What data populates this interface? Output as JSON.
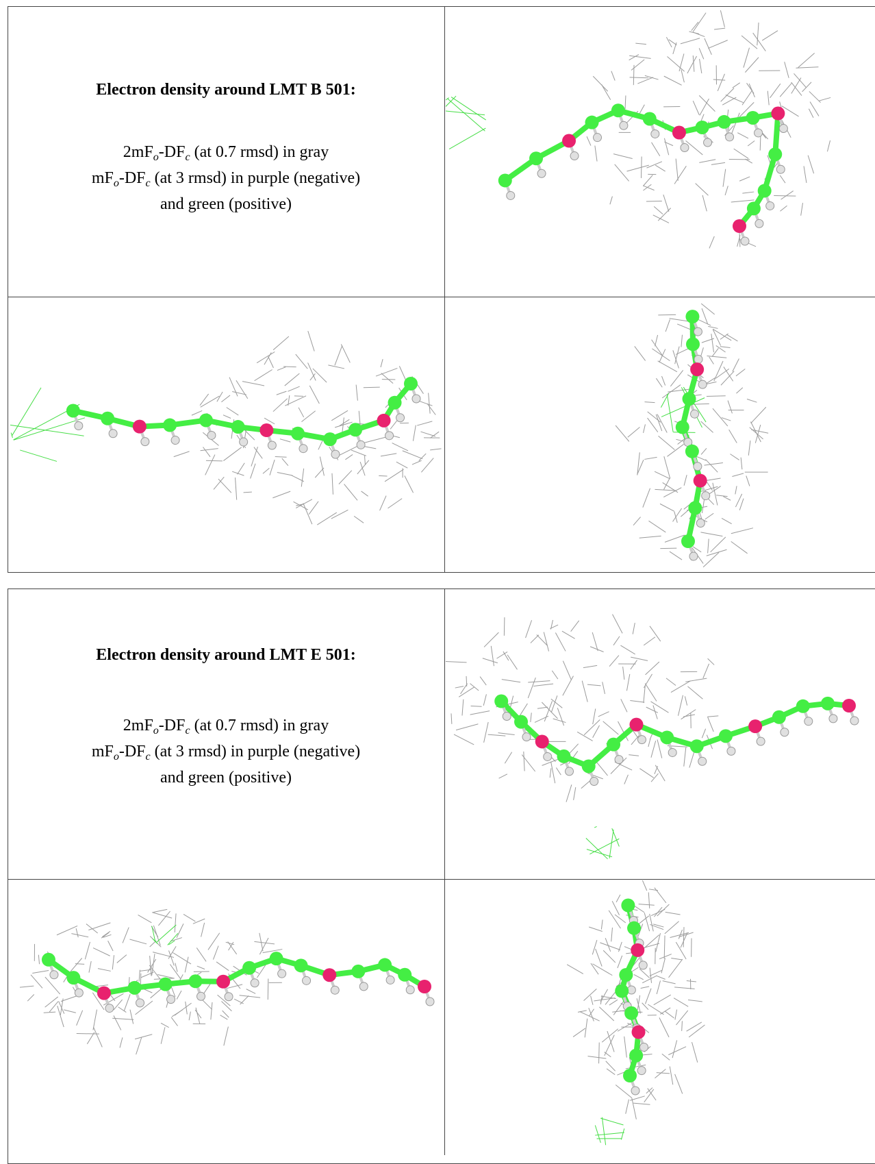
{
  "tables": [
    {
      "title": "Electron density around LMT B 501:",
      "line1": [
        "2mF",
        "o",
        "-DF",
        "c",
        " (at 0.7 rmsd) in gray"
      ],
      "line2": [
        "mF",
        "o",
        "-DF",
        "c",
        " (at 3 rmsd) in purple (negative)"
      ],
      "line3": "and green (positive)"
    },
    {
      "title": "Electron density around LMT E 501:",
      "line1": [
        "2mF",
        "o",
        "-DF",
        "c",
        " (at 0.7 rmsd) in gray"
      ],
      "line2": [
        "mF",
        "o",
        "-DF",
        "c",
        " (at 3 rmsd) in purple (negative)"
      ],
      "line3": "and green (positive)"
    }
  ]
}
